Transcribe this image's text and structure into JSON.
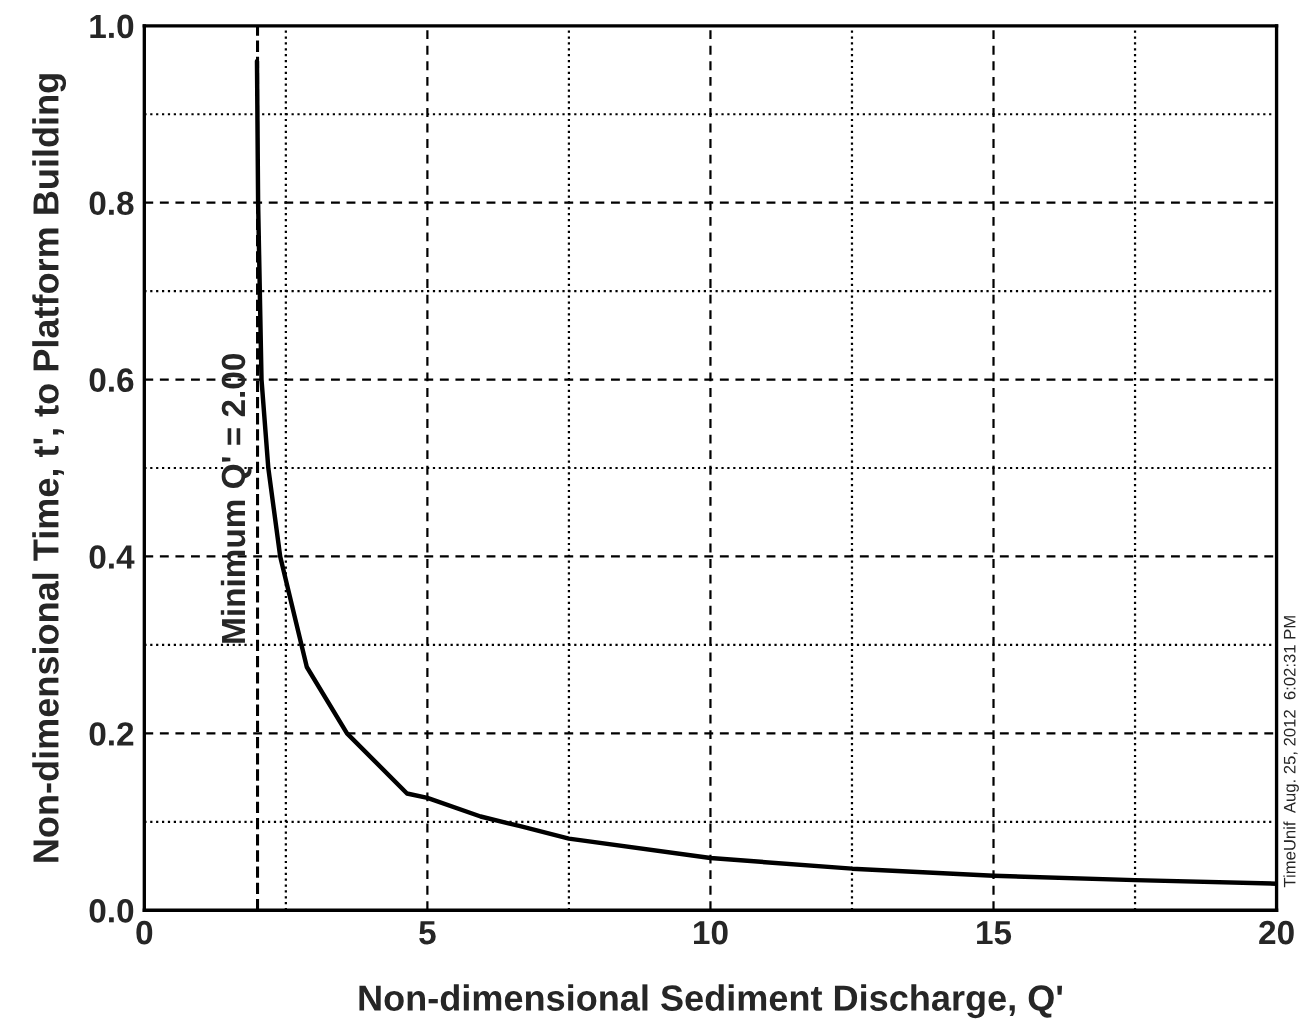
{
  "chart_data": {
    "type": "line",
    "xlabel": "Non-dimensional Sediment Discharge, Q'",
    "ylabel": "Non-dimensional Time, t', to Platform Building",
    "series": [
      {
        "color": "#000000",
        "x": [
          1.99,
          2.01,
          2.07,
          2.19,
          2.4,
          2.87,
          3.58,
          4.64,
          5.0,
          5.94,
          6.64,
          7.5,
          10,
          12.5,
          15,
          17.5,
          20
        ],
        "values": [
          0.96,
          0.8,
          0.6,
          0.5,
          0.4,
          0.275,
          0.2,
          0.132,
          0.127,
          0.106,
          0.095,
          0.081,
          0.059,
          0.047,
          0.039,
          0.034,
          0.03
        ]
      }
    ],
    "xlim": [
      0,
      20
    ],
    "xticks": [
      0,
      {
        "value": 2.5,
        "label": null
      },
      5,
      {
        "value": 7.5,
        "label": null
      },
      10,
      {
        "value": 12.5,
        "label": null
      },
      15,
      {
        "value": 17.5,
        "label": null
      },
      20
    ],
    "ylim": [
      0,
      1
    ],
    "yticks": [
      {
        "value": 0,
        "label": "0.0"
      },
      {
        "value": 0.1,
        "label": null
      },
      0.2,
      {
        "value": 0.3,
        "label": null
      },
      0.4,
      {
        "value": 0.5,
        "label": null
      },
      0.6,
      {
        "value": 0.7,
        "label": null
      },
      0.8,
      {
        "value": 0.9,
        "label": null
      },
      {
        "value": 1,
        "label": "1.0"
      }
    ],
    "grid": true,
    "legend": false,
    "ref_lines": [
      {
        "axis": "x",
        "value": 2,
        "label": "Minimum Q' = 2.00",
        "line_style": "dashed",
        "color": "#000000"
      }
    ],
    "annotations": [
      "TimeUnif  Aug. 25, 2012  6:02:31 PM"
    ]
  }
}
